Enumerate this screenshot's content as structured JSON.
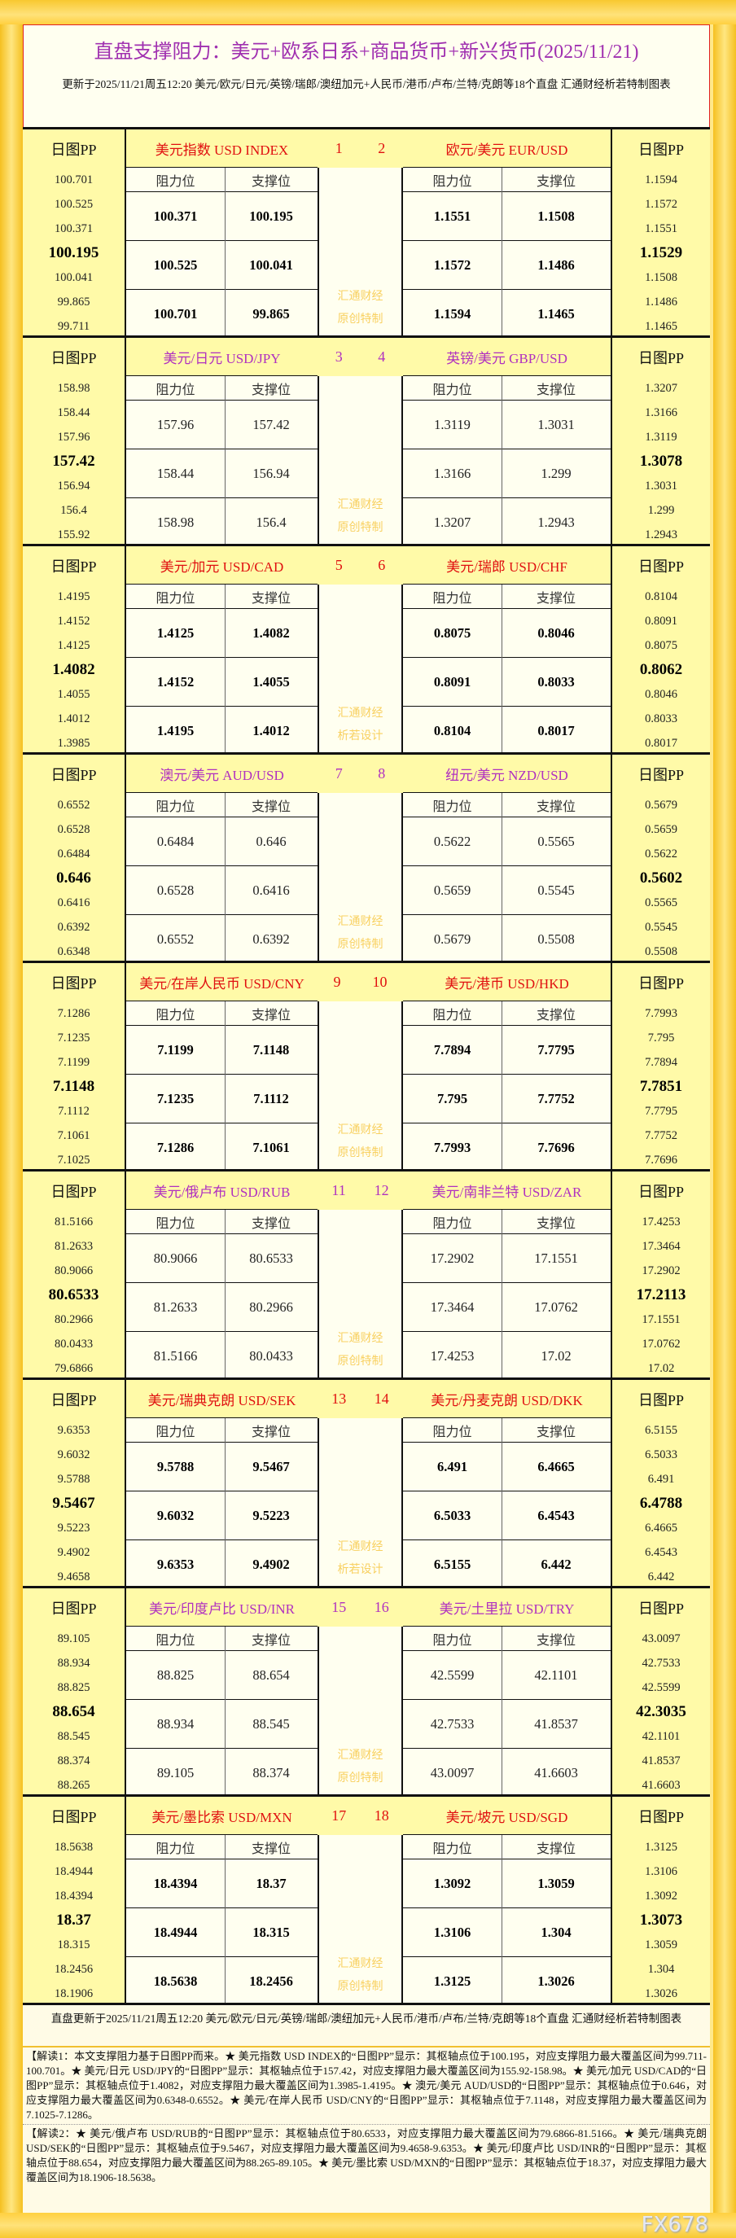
{
  "header": {
    "title": "直盘支撑阻力：美元+欧系日系+商品货币+新兴货币(2025/11/21)",
    "subtitle": "更新于2025/11/21周五12:20 美元/欧元/日元/英镑/瑞郎/澳纽加元+人民币/港币/卢布/兰特/克朗等18个直盘 汇通财经析若特制图表"
  },
  "labels": {
    "pp": "日图PP",
    "resistance": "阻力位",
    "support": "支撑位"
  },
  "colors": {
    "red": "#e01010",
    "purple": "#b030c0",
    "watermark": "#f8d060"
  },
  "blocks": [
    {
      "color": "red",
      "bold": true,
      "n1": "1",
      "n2": "2",
      "wm1": "汇通财经",
      "wm2": "原创特制",
      "left": {
        "name": "美元指数 USD INDEX",
        "pp": [
          "100.701",
          "100.525",
          "100.371",
          "100.195",
          "100.041",
          "99.865",
          "99.711"
        ],
        "levels": [
          [
            "100.371",
            "100.195"
          ],
          [
            "100.525",
            "100.041"
          ],
          [
            "100.701",
            "99.865"
          ]
        ]
      },
      "right": {
        "name": "欧元/美元 EUR/USD",
        "pp": [
          "1.1594",
          "1.1572",
          "1.1551",
          "1.1529",
          "1.1508",
          "1.1486",
          "1.1465"
        ],
        "levels": [
          [
            "1.1551",
            "1.1508"
          ],
          [
            "1.1572",
            "1.1486"
          ],
          [
            "1.1594",
            "1.1465"
          ]
        ]
      }
    },
    {
      "color": "purple",
      "bold": false,
      "n1": "3",
      "n2": "4",
      "wm1": "汇通财经",
      "wm2": "原创特制",
      "left": {
        "name": "美元/日元 USD/JPY",
        "pp": [
          "158.98",
          "158.44",
          "157.96",
          "157.42",
          "156.94",
          "156.4",
          "155.92"
        ],
        "levels": [
          [
            "157.96",
            "157.42"
          ],
          [
            "158.44",
            "156.94"
          ],
          [
            "158.98",
            "156.4"
          ]
        ]
      },
      "right": {
        "name": "英镑/美元 GBP/USD",
        "pp": [
          "1.3207",
          "1.3166",
          "1.3119",
          "1.3078",
          "1.3031",
          "1.299",
          "1.2943"
        ],
        "levels": [
          [
            "1.3119",
            "1.3031"
          ],
          [
            "1.3166",
            "1.299"
          ],
          [
            "1.3207",
            "1.2943"
          ]
        ]
      }
    },
    {
      "color": "red",
      "bold": true,
      "n1": "5",
      "n2": "6",
      "wm1": "汇通财经",
      "wm2": "析若设计",
      "left": {
        "name": "美元/加元 USD/CAD",
        "pp": [
          "1.4195",
          "1.4152",
          "1.4125",
          "1.4082",
          "1.4055",
          "1.4012",
          "1.3985"
        ],
        "levels": [
          [
            "1.4125",
            "1.4082"
          ],
          [
            "1.4152",
            "1.4055"
          ],
          [
            "1.4195",
            "1.4012"
          ]
        ]
      },
      "right": {
        "name": "美元/瑞郎 USD/CHF",
        "pp": [
          "0.8104",
          "0.8091",
          "0.8075",
          "0.8062",
          "0.8046",
          "0.8033",
          "0.8017"
        ],
        "levels": [
          [
            "0.8075",
            "0.8046"
          ],
          [
            "0.8091",
            "0.8033"
          ],
          [
            "0.8104",
            "0.8017"
          ]
        ]
      }
    },
    {
      "color": "purple",
      "bold": false,
      "n1": "7",
      "n2": "8",
      "wm1": "汇通财经",
      "wm2": "原创特制",
      "left": {
        "name": "澳元/美元 AUD/USD",
        "pp": [
          "0.6552",
          "0.6528",
          "0.6484",
          "0.646",
          "0.6416",
          "0.6392",
          "0.6348"
        ],
        "levels": [
          [
            "0.6484",
            "0.646"
          ],
          [
            "0.6528",
            "0.6416"
          ],
          [
            "0.6552",
            "0.6392"
          ]
        ]
      },
      "right": {
        "name": "纽元/美元 NZD/USD",
        "pp": [
          "0.5679",
          "0.5659",
          "0.5622",
          "0.5602",
          "0.5565",
          "0.5545",
          "0.5508"
        ],
        "levels": [
          [
            "0.5622",
            "0.5565"
          ],
          [
            "0.5659",
            "0.5545"
          ],
          [
            "0.5679",
            "0.5508"
          ]
        ]
      }
    },
    {
      "color": "red",
      "bold": true,
      "n1": "9",
      "n2": "10",
      "wm1": "汇通财经",
      "wm2": "原创特制",
      "left": {
        "name": "美元/在岸人民币 USD/CNY",
        "pp": [
          "7.1286",
          "7.1235",
          "7.1199",
          "7.1148",
          "7.1112",
          "7.1061",
          "7.1025"
        ],
        "levels": [
          [
            "7.1199",
            "7.1148"
          ],
          [
            "7.1235",
            "7.1112"
          ],
          [
            "7.1286",
            "7.1061"
          ]
        ]
      },
      "right": {
        "name": "美元/港币 USD/HKD",
        "pp": [
          "7.7993",
          "7.795",
          "7.7894",
          "7.7851",
          "7.7795",
          "7.7752",
          "7.7696"
        ],
        "levels": [
          [
            "7.7894",
            "7.7795"
          ],
          [
            "7.795",
            "7.7752"
          ],
          [
            "7.7993",
            "7.7696"
          ]
        ]
      }
    },
    {
      "color": "purple",
      "bold": false,
      "n1": "11",
      "n2": "12",
      "wm1": "汇通财经",
      "wm2": "原创特制",
      "left": {
        "name": "美元/俄卢布 USD/RUB",
        "pp": [
          "81.5166",
          "81.2633",
          "80.9066",
          "80.6533",
          "80.2966",
          "80.0433",
          "79.6866"
        ],
        "levels": [
          [
            "80.9066",
            "80.6533"
          ],
          [
            "81.2633",
            "80.2966"
          ],
          [
            "81.5166",
            "80.0433"
          ]
        ]
      },
      "right": {
        "name": "美元/南非兰特 USD/ZAR",
        "pp": [
          "17.4253",
          "17.3464",
          "17.2902",
          "17.2113",
          "17.1551",
          "17.0762",
          "17.02"
        ],
        "levels": [
          [
            "17.2902",
            "17.1551"
          ],
          [
            "17.3464",
            "17.0762"
          ],
          [
            "17.4253",
            "17.02"
          ]
        ]
      }
    },
    {
      "color": "red",
      "bold": true,
      "n1": "13",
      "n2": "14",
      "wm1": "汇通财经",
      "wm2": "析若设计",
      "left": {
        "name": "美元/瑞典克朗 USD/SEK",
        "pp": [
          "9.6353",
          "9.6032",
          "9.5788",
          "9.5467",
          "9.5223",
          "9.4902",
          "9.4658"
        ],
        "levels": [
          [
            "9.5788",
            "9.5467"
          ],
          [
            "9.6032",
            "9.5223"
          ],
          [
            "9.6353",
            "9.4902"
          ]
        ]
      },
      "right": {
        "name": "美元/丹麦克朗 USD/DKK",
        "pp": [
          "6.5155",
          "6.5033",
          "6.491",
          "6.4788",
          "6.4665",
          "6.4543",
          "6.442"
        ],
        "levels": [
          [
            "6.491",
            "6.4665"
          ],
          [
            "6.5033",
            "6.4543"
          ],
          [
            "6.5155",
            "6.442"
          ]
        ]
      }
    },
    {
      "color": "purple",
      "bold": false,
      "n1": "15",
      "n2": "16",
      "wm1": "汇通财经",
      "wm2": "原创特制",
      "left": {
        "name": "美元/印度卢比 USD/INR",
        "pp": [
          "89.105",
          "88.934",
          "88.825",
          "88.654",
          "88.545",
          "88.374",
          "88.265"
        ],
        "levels": [
          [
            "88.825",
            "88.654"
          ],
          [
            "88.934",
            "88.545"
          ],
          [
            "89.105",
            "88.374"
          ]
        ]
      },
      "right": {
        "name": "美元/土里拉 USD/TRY",
        "pp": [
          "43.0097",
          "42.7533",
          "42.5599",
          "42.3035",
          "42.1101",
          "41.8537",
          "41.6603"
        ],
        "levels": [
          [
            "42.5599",
            "42.1101"
          ],
          [
            "42.7533",
            "41.8537"
          ],
          [
            "43.0097",
            "41.6603"
          ]
        ]
      }
    },
    {
      "color": "red",
      "bold": true,
      "n1": "17",
      "n2": "18",
      "wm1": "汇通财经",
      "wm2": "原创特制",
      "left": {
        "name": "美元/墨比索 USD/MXN",
        "pp": [
          "18.5638",
          "18.4944",
          "18.4394",
          "18.37",
          "18.315",
          "18.2456",
          "18.1906"
        ],
        "levels": [
          [
            "18.4394",
            "18.37"
          ],
          [
            "18.4944",
            "18.315"
          ],
          [
            "18.5638",
            "18.2456"
          ]
        ]
      },
      "right": {
        "name": "美元/坡元 USD/SGD",
        "pp": [
          "1.3125",
          "1.3106",
          "1.3092",
          "1.3073",
          "1.3059",
          "1.304",
          "1.3026"
        ],
        "levels": [
          [
            "1.3092",
            "1.3059"
          ],
          [
            "1.3106",
            "1.304"
          ],
          [
            "1.3125",
            "1.3026"
          ]
        ]
      }
    }
  ],
  "footer": {
    "note": "直盘更新于2025/11/21周五12:20 美元/欧元/日元/英镑/瑞郎/澳纽加元+人民币/港币/卢布/兰特/克朗等18个直盘 汇通财经析若特制图表",
    "read1": "【解读1：本文支撑阻力基于日图PP而来。★ 美元指数 USD INDEX的“日图PP”显示：其枢轴点位于100.195，对应支撑阻力最大覆盖区间为99.711-100.701。★ 美元/日元 USD/JPY的“日图PP”显示：其枢轴点位于157.42，对应支撑阻力最大覆盖区间为155.92-158.98。★ 美元/加元 USD/CAD的“日图PP”显示：其枢轴点位于1.4082，对应支撑阻力最大覆盖区间为1.3985-1.4195。★ 澳元/美元 AUD/USD的“日图PP”显示：其枢轴点位于0.646，对应支撑阻力最大覆盖区间为0.6348-0.6552。★ 美元/在岸人民币 USD/CNY的“日图PP”显示：其枢轴点位于7.1148，对应支撑阻力最大覆盖区间为7.1025-7.1286。",
    "read2": "【解读2：★ 美元/俄卢布 USD/RUB的“日图PP”显示：其枢轴点位于80.6533，对应支撑阻力最大覆盖区间为79.6866-81.5166。★ 美元/瑞典克朗 USD/SEK的“日图PP”显示：其枢轴点位于9.5467，对应支撑阻力最大覆盖区间为9.4658-9.6353。★ 美元/印度卢比 USD/INR的“日图PP”显示：其枢轴点位于88.654，对应支撑阻力最大覆盖区间为88.265-89.105。★ 美元/墨比索 USD/MXN的“日图PP”显示：其枢轴点位于18.37，对应支撑阻力最大覆盖区间为18.1906-18.5638。",
    "logo": "FX678"
  }
}
